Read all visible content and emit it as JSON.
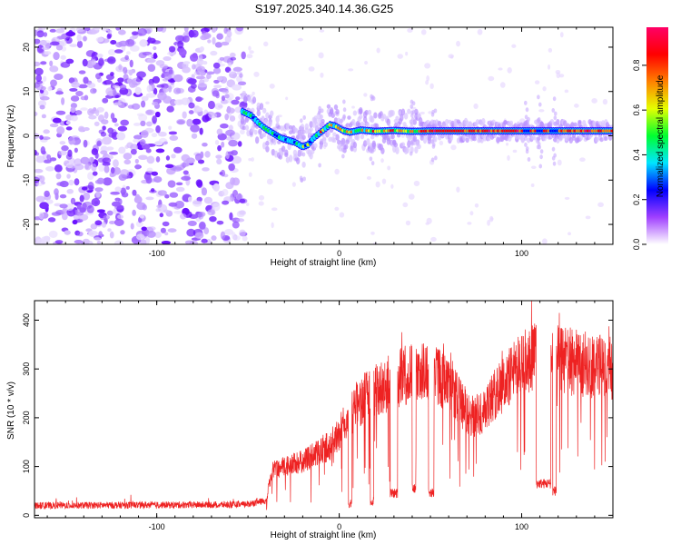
{
  "title": "S197.2025.340.14.36.G25",
  "chart_data": [
    {
      "type": "heatmap",
      "name": "spectrogram",
      "xlabel": "Height of straight line (km)",
      "ylabel": "Frequency (Hz)",
      "xlim": [
        -167,
        150
      ],
      "ylim": [
        -24.5,
        24.5
      ],
      "xticks": [
        -100,
        0,
        100
      ],
      "yticks": [
        -20,
        -10,
        0,
        10,
        20
      ],
      "noise_region_x": [
        -167,
        -52
      ],
      "signal_track": [
        {
          "x": -53,
          "y": 5.5
        },
        {
          "x": -48,
          "y": 4.5
        },
        {
          "x": -44,
          "y": 2.8
        },
        {
          "x": -40,
          "y": 1.5
        },
        {
          "x": -36,
          "y": 0.5
        },
        {
          "x": -32,
          "y": -0.5
        },
        {
          "x": -28,
          "y": -1.0
        },
        {
          "x": -24,
          "y": -1.5
        },
        {
          "x": -20,
          "y": -2.5
        },
        {
          "x": -17,
          "y": -2.0
        },
        {
          "x": -14,
          "y": -0.5
        },
        {
          "x": -11,
          "y": 0.5
        },
        {
          "x": -8,
          "y": 1.5
        },
        {
          "x": -5,
          "y": 2.5
        },
        {
          "x": -2,
          "y": 2.2
        },
        {
          "x": 2,
          "y": 1.2
        },
        {
          "x": 6,
          "y": 0.8
        },
        {
          "x": 12,
          "y": 1.3
        },
        {
          "x": 20,
          "y": 1.0
        },
        {
          "x": 30,
          "y": 1.2
        },
        {
          "x": 40,
          "y": 1.0
        },
        {
          "x": 50,
          "y": 1.1
        },
        {
          "x": 150,
          "y": 1.1
        }
      ],
      "colorbar": {
        "label": "Normalized spectral amplitude",
        "range": [
          0,
          0.97
        ],
        "ticks": [
          0.0,
          0.2,
          0.4,
          0.6,
          0.8
        ],
        "tick_labels": [
          "0.0",
          "0.2",
          "0.4",
          "0.6",
          "0.8"
        ],
        "colors": [
          "#ffffff",
          "#a040ff",
          "#0000ff",
          "#00e5ff",
          "#00ff30",
          "#e5ff00",
          "#ff8000",
          "#ff0000",
          "#ff0066"
        ]
      }
    },
    {
      "type": "line",
      "name": "snr",
      "xlabel": "Height of straight line (km)",
      "ylabel": "SNR (10 * v/v)",
      "xlim": [
        -167,
        150
      ],
      "ylim": [
        -5,
        440
      ],
      "xticks": [
        -100,
        0,
        100
      ],
      "yticks": [
        0,
        100,
        200,
        300,
        400
      ],
      "color": "#ee2222",
      "envelope": [
        {
          "x": -167,
          "y": 20
        },
        {
          "x": -52,
          "y": 22
        },
        {
          "x": -40,
          "y": 30
        },
        {
          "x": -37,
          "y": 90
        },
        {
          "x": -30,
          "y": 100
        },
        {
          "x": -20,
          "y": 110
        },
        {
          "x": -10,
          "y": 130
        },
        {
          "x": -5,
          "y": 145
        },
        {
          "x": 5,
          "y": 195
        },
        {
          "x": 10,
          "y": 230
        },
        {
          "x": 20,
          "y": 255
        },
        {
          "x": 30,
          "y": 275
        },
        {
          "x": 40,
          "y": 295
        },
        {
          "x": 55,
          "y": 285
        },
        {
          "x": 65,
          "y": 240
        },
        {
          "x": 72,
          "y": 200
        },
        {
          "x": 78,
          "y": 210
        },
        {
          "x": 85,
          "y": 245
        },
        {
          "x": 95,
          "y": 290
        },
        {
          "x": 105,
          "y": 325
        },
        {
          "x": 115,
          "y": 330
        },
        {
          "x": 125,
          "y": 315
        },
        {
          "x": 135,
          "y": 310
        },
        {
          "x": 150,
          "y": 300
        }
      ],
      "dropouts": [
        {
          "x0": 5,
          "x1": 7,
          "y": 25
        },
        {
          "x0": 17,
          "x1": 19,
          "y": 30
        },
        {
          "x0": 28,
          "x1": 32,
          "y": 45
        },
        {
          "x0": 40,
          "x1": 42,
          "y": 55
        },
        {
          "x0": 49,
          "x1": 52,
          "y": 45
        },
        {
          "x0": 108,
          "x1": 116,
          "y": 65
        },
        {
          "x0": 117,
          "x1": 119,
          "y": 50
        }
      ]
    }
  ]
}
